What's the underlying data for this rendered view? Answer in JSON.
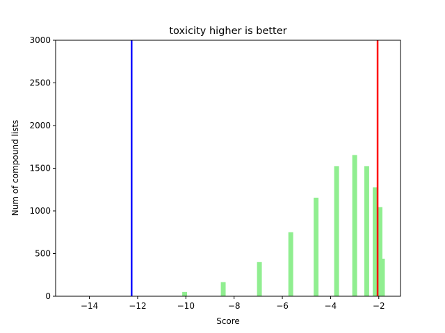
{
  "chart_data": {
    "type": "bar",
    "title": "toxicity higher is better",
    "xlabel": "Score",
    "ylabel": "Num of compound lists",
    "xlim": [
      -15.4,
      -1.1
    ],
    "ylim": [
      0,
      3000
    ],
    "xticks": [
      -14,
      -12,
      -10,
      -8,
      -6,
      -4,
      -2
    ],
    "xtick_labels": [
      "−14",
      "−12",
      "−10",
      "−8",
      "−6",
      "−4",
      "−2"
    ],
    "yticks": [
      0,
      500,
      1000,
      1500,
      2000,
      2500,
      3000
    ],
    "ytick_labels": [
      "0",
      "500",
      "1000",
      "1500",
      "2000",
      "2500",
      "3000"
    ],
    "grid": false,
    "bar_color": "#90ee90",
    "bar_width": 0.2,
    "bars": [
      {
        "x": -10.05,
        "value": 50
      },
      {
        "x": -8.45,
        "value": 165
      },
      {
        "x": -6.95,
        "value": 400
      },
      {
        "x": -5.65,
        "value": 750
      },
      {
        "x": -4.6,
        "value": 1155
      },
      {
        "x": -3.75,
        "value": 1525
      },
      {
        "x": -3.0,
        "value": 1655
      },
      {
        "x": -2.5,
        "value": 1525
      },
      {
        "x": -2.15,
        "value": 1275
      },
      {
        "x": -1.95,
        "value": 1045
      },
      {
        "x": -1.85,
        "value": 440
      }
    ],
    "vlines": [
      {
        "x": -12.25,
        "color": "#0000ff"
      },
      {
        "x": -2.05,
        "color": "#ff0000"
      }
    ]
  }
}
